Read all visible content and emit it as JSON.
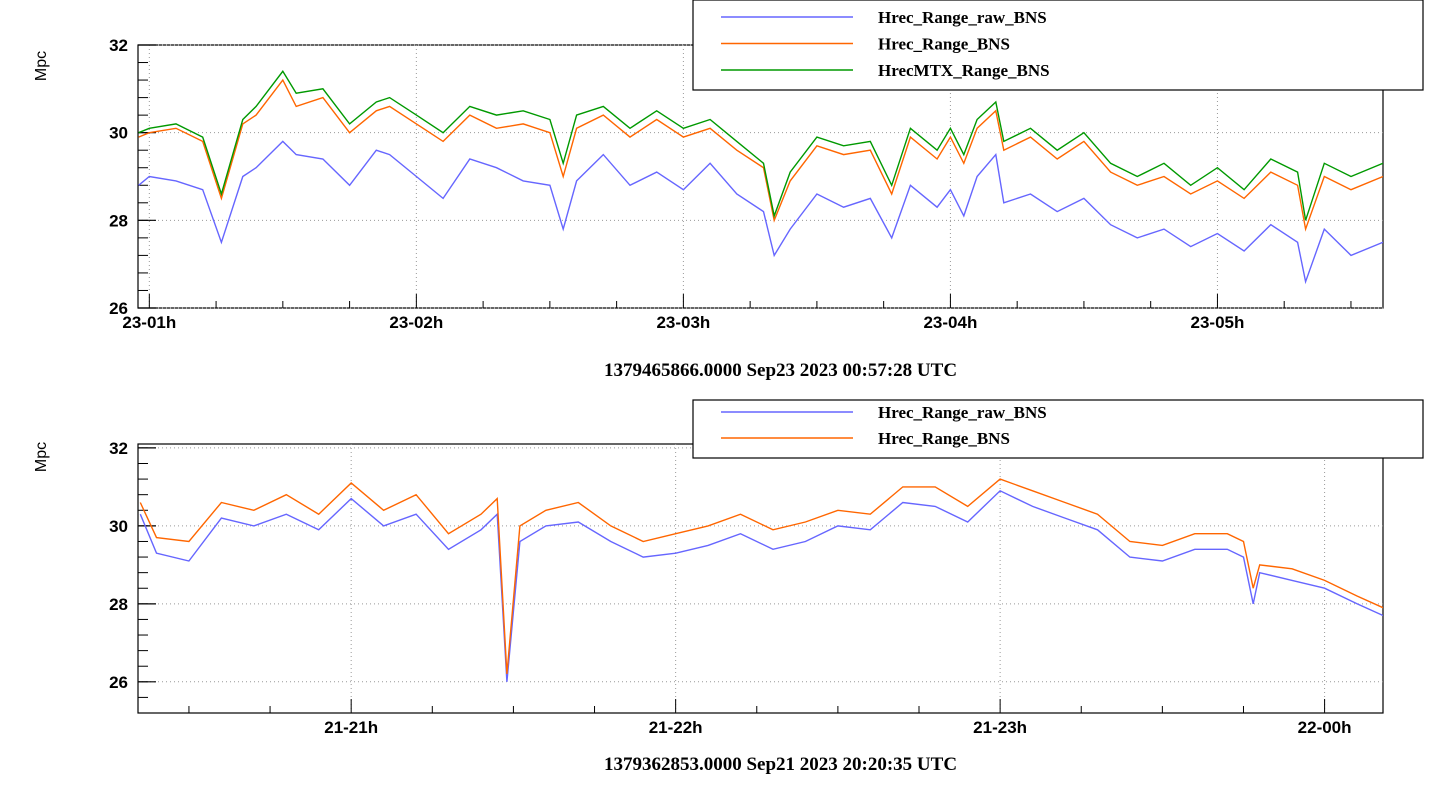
{
  "chart_data": [
    {
      "type": "line",
      "title": "",
      "ylabel": "Mpc",
      "xlabel": "1379465866.0000 Sep23 2023 00:57:28 UTC",
      "ylim": [
        26,
        32
      ],
      "yticks": [
        26,
        28,
        30,
        32
      ],
      "y_tick_labels": [
        "26",
        "28",
        "30",
        "32"
      ],
      "x_range_hours": [
        0.9576,
        5.62
      ],
      "xticks_hours": [
        1,
        2,
        3,
        4,
        5
      ],
      "x_tick_labels": [
        "23-01h",
        "23-02h",
        "23-03h",
        "23-04h",
        "23-05h"
      ],
      "grid": true,
      "legend_position": "top-right",
      "series": [
        {
          "name": "Hrec_Range_raw_BNS",
          "color": "#6666ff",
          "x": [
            0.96,
            1.0,
            1.1,
            1.2,
            1.27,
            1.35,
            1.4,
            1.5,
            1.55,
            1.65,
            1.75,
            1.85,
            1.9,
            2.0,
            2.1,
            2.2,
            2.3,
            2.4,
            2.5,
            2.55,
            2.6,
            2.7,
            2.8,
            2.9,
            3.0,
            3.1,
            3.2,
            3.3,
            3.34,
            3.4,
            3.5,
            3.6,
            3.7,
            3.78,
            3.85,
            3.95,
            4.0,
            4.05,
            4.1,
            4.17,
            4.2,
            4.3,
            4.4,
            4.5,
            4.6,
            4.7,
            4.8,
            4.9,
            5.0,
            5.1,
            5.2,
            5.3,
            5.33,
            5.4,
            5.5,
            5.62
          ],
          "y": [
            28.8,
            29.0,
            28.9,
            28.7,
            27.5,
            29.0,
            29.2,
            29.8,
            29.5,
            29.4,
            28.8,
            29.6,
            29.5,
            29.0,
            28.5,
            29.4,
            29.2,
            28.9,
            28.8,
            27.8,
            28.9,
            29.5,
            28.8,
            29.1,
            28.7,
            29.3,
            28.6,
            28.2,
            27.2,
            27.8,
            28.6,
            28.3,
            28.5,
            27.6,
            28.8,
            28.3,
            28.7,
            28.1,
            29.0,
            29.5,
            28.4,
            28.6,
            28.2,
            28.5,
            27.9,
            27.6,
            27.8,
            27.4,
            27.7,
            27.3,
            27.9,
            27.5,
            26.6,
            27.8,
            27.2,
            27.5
          ]
        },
        {
          "name": "Hrec_Range_BNS",
          "color": "#ff6600",
          "x": [
            0.96,
            1.0,
            1.1,
            1.2,
            1.27,
            1.35,
            1.4,
            1.5,
            1.55,
            1.65,
            1.75,
            1.85,
            1.9,
            2.0,
            2.1,
            2.2,
            2.3,
            2.4,
            2.5,
            2.55,
            2.6,
            2.7,
            2.8,
            2.9,
            3.0,
            3.1,
            3.2,
            3.3,
            3.34,
            3.4,
            3.5,
            3.6,
            3.7,
            3.78,
            3.85,
            3.95,
            4.0,
            4.05,
            4.1,
            4.17,
            4.2,
            4.3,
            4.4,
            4.5,
            4.6,
            4.7,
            4.8,
            4.9,
            5.0,
            5.1,
            5.2,
            5.3,
            5.33,
            5.4,
            5.5,
            5.62
          ],
          "y": [
            29.9,
            30.0,
            30.1,
            29.8,
            28.5,
            30.2,
            30.4,
            31.2,
            30.6,
            30.8,
            30.0,
            30.5,
            30.6,
            30.2,
            29.8,
            30.4,
            30.1,
            30.2,
            30.0,
            29.0,
            30.1,
            30.4,
            29.9,
            30.3,
            29.9,
            30.1,
            29.6,
            29.2,
            28.0,
            28.9,
            29.7,
            29.5,
            29.6,
            28.6,
            29.9,
            29.4,
            29.9,
            29.3,
            30.1,
            30.5,
            29.6,
            29.9,
            29.4,
            29.8,
            29.1,
            28.8,
            29.0,
            28.6,
            28.9,
            28.5,
            29.1,
            28.8,
            27.8,
            29.0,
            28.7,
            29.0
          ]
        },
        {
          "name": "HrecMTX_Range_BNS",
          "color": "#009900",
          "x": [
            0.96,
            1.0,
            1.1,
            1.2,
            1.27,
            1.35,
            1.4,
            1.5,
            1.55,
            1.65,
            1.75,
            1.85,
            1.9,
            2.0,
            2.1,
            2.2,
            2.3,
            2.4,
            2.5,
            2.55,
            2.6,
            2.7,
            2.8,
            2.9,
            3.0,
            3.1,
            3.2,
            3.3,
            3.34,
            3.4,
            3.5,
            3.6,
            3.7,
            3.78,
            3.85,
            3.95,
            4.0,
            4.05,
            4.1,
            4.17,
            4.2,
            4.3,
            4.4,
            4.5,
            4.6,
            4.7,
            4.8,
            4.9,
            5.0,
            5.1,
            5.2,
            5.3,
            5.33,
            5.4,
            5.5,
            5.62
          ],
          "y": [
            30.0,
            30.1,
            30.2,
            29.9,
            28.6,
            30.3,
            30.6,
            31.4,
            30.9,
            31.0,
            30.2,
            30.7,
            30.8,
            30.4,
            30.0,
            30.6,
            30.4,
            30.5,
            30.3,
            29.3,
            30.4,
            30.6,
            30.1,
            30.5,
            30.1,
            30.3,
            29.8,
            29.3,
            28.1,
            29.1,
            29.9,
            29.7,
            29.8,
            28.8,
            30.1,
            29.6,
            30.1,
            29.5,
            30.3,
            30.7,
            29.8,
            30.1,
            29.6,
            30.0,
            29.3,
            29.0,
            29.3,
            28.8,
            29.2,
            28.7,
            29.4,
            29.1,
            28.0,
            29.3,
            29.0,
            29.3
          ]
        }
      ]
    },
    {
      "type": "line",
      "title": "",
      "ylabel": "Mpc",
      "xlabel": "1379362853.0000 Sep21 2023 20:20:35 UTC",
      "ylim": [
        25.2,
        32.1
      ],
      "yticks": [
        26,
        28,
        30,
        32
      ],
      "y_tick_labels": [
        "26",
        "28",
        "30",
        "32"
      ],
      "x_range_hours": [
        20.343,
        24.18
      ],
      "xticks_hours": [
        21,
        22,
        23,
        24
      ],
      "x_tick_labels": [
        "21-21h",
        "21-22h",
        "21-23h",
        "22-00h"
      ],
      "grid": true,
      "legend_position": "top-right",
      "series": [
        {
          "name": "Hrec_Range_raw_BNS",
          "color": "#6666ff",
          "x": [
            20.35,
            20.4,
            20.5,
            20.6,
            20.7,
            20.8,
            20.9,
            21.0,
            21.1,
            21.2,
            21.3,
            21.4,
            21.45,
            21.48,
            21.52,
            21.6,
            21.7,
            21.8,
            21.9,
            22.0,
            22.1,
            22.2,
            22.3,
            22.4,
            22.5,
            22.6,
            22.7,
            22.8,
            22.9,
            23.0,
            23.1,
            23.2,
            23.3,
            23.4,
            23.5,
            23.6,
            23.7,
            23.75,
            23.78,
            23.8,
            23.9,
            24.0,
            24.1,
            24.18
          ],
          "y": [
            30.3,
            29.3,
            29.1,
            30.2,
            30.0,
            30.3,
            29.9,
            30.7,
            30.0,
            30.3,
            29.4,
            29.9,
            30.3,
            26.0,
            29.6,
            30.0,
            30.1,
            29.6,
            29.2,
            29.3,
            29.5,
            29.8,
            29.4,
            29.6,
            30.0,
            29.9,
            30.6,
            30.5,
            30.1,
            30.9,
            30.5,
            30.2,
            29.9,
            29.2,
            29.1,
            29.4,
            29.4,
            29.2,
            28.0,
            28.8,
            28.6,
            28.4,
            28.0,
            27.7
          ]
        },
        {
          "name": "Hrec_Range_BNS",
          "color": "#ff6600",
          "x": [
            20.35,
            20.4,
            20.5,
            20.6,
            20.7,
            20.8,
            20.9,
            21.0,
            21.1,
            21.2,
            21.3,
            21.4,
            21.45,
            21.48,
            21.52,
            21.6,
            21.7,
            21.8,
            21.9,
            22.0,
            22.1,
            22.2,
            22.3,
            22.4,
            22.5,
            22.6,
            22.7,
            22.8,
            22.9,
            23.0,
            23.1,
            23.2,
            23.3,
            23.4,
            23.5,
            23.6,
            23.7,
            23.75,
            23.78,
            23.8,
            23.9,
            24.0,
            24.1,
            24.18
          ],
          "y": [
            30.6,
            29.7,
            29.6,
            30.6,
            30.4,
            30.8,
            30.3,
            31.1,
            30.4,
            30.8,
            29.8,
            30.3,
            30.7,
            26.2,
            30.0,
            30.4,
            30.6,
            30.0,
            29.6,
            29.8,
            30.0,
            30.3,
            29.9,
            30.1,
            30.4,
            30.3,
            31.0,
            31.0,
            30.5,
            31.2,
            30.9,
            30.6,
            30.3,
            29.6,
            29.5,
            29.8,
            29.8,
            29.6,
            28.4,
            29.0,
            28.9,
            28.6,
            28.2,
            27.9
          ]
        }
      ]
    }
  ]
}
